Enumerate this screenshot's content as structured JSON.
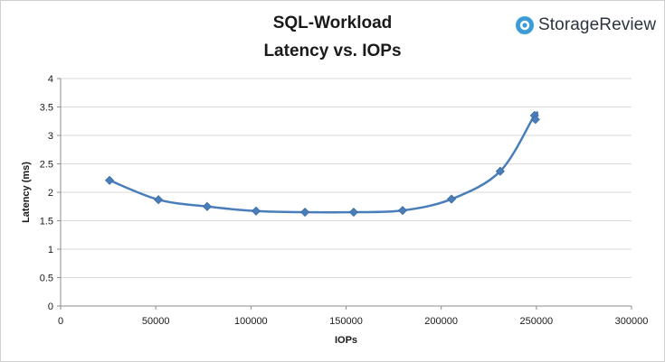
{
  "logo": {
    "text": "StorageReview",
    "icon": "storagereview-logo-icon",
    "color": "#3d9bd6"
  },
  "chart_data": {
    "type": "scatter",
    "title": "SQL-Workload",
    "subtitle": "Latency vs. IOPs",
    "xlabel": "IOPs",
    "ylabel": "Latency (ms)",
    "xlim": [
      0,
      300000
    ],
    "ylim": [
      0,
      4
    ],
    "x_ticks": [
      "0",
      "50000",
      "100000",
      "150000",
      "200000",
      "250000",
      "300000"
    ],
    "y_ticks": [
      "0",
      "0.5",
      "1",
      "1.5",
      "2",
      "2.5",
      "3",
      "3.5",
      "4"
    ],
    "x_tick_values": [
      0,
      50000,
      100000,
      150000,
      200000,
      250000,
      300000
    ],
    "y_tick_values": [
      0,
      0.5,
      1,
      1.5,
      2,
      2.5,
      3,
      3.5,
      4
    ],
    "grid": "horizontal",
    "legend": "none",
    "series": [
      {
        "color": "#4a7ebb",
        "marker": "diamond",
        "smooth": true,
        "x": [
          25700,
          51400,
          77000,
          102700,
          128400,
          154000,
          179700,
          205400,
          231000,
          249000,
          249500
        ],
        "y": [
          2.21,
          1.87,
          1.75,
          1.67,
          1.65,
          1.65,
          1.68,
          1.88,
          2.37,
          3.35,
          3.28
        ]
      }
    ]
  }
}
